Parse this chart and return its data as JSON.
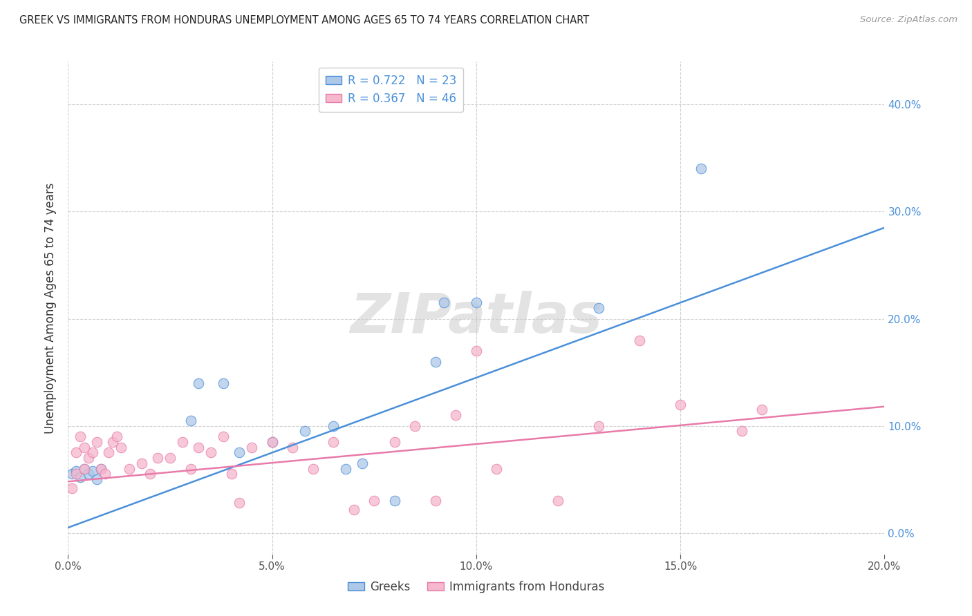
{
  "title": "GREEK VS IMMIGRANTS FROM HONDURAS UNEMPLOYMENT AMONG AGES 65 TO 74 YEARS CORRELATION CHART",
  "source": "Source: ZipAtlas.com",
  "ylabel": "Unemployment Among Ages 65 to 74 years",
  "xlim": [
    0,
    0.2
  ],
  "ylim": [
    -0.02,
    0.44
  ],
  "xticks": [
    0.0,
    0.05,
    0.1,
    0.15,
    0.2
  ],
  "yticks": [
    0.0,
    0.1,
    0.2,
    0.3,
    0.4
  ],
  "background_color": "#ffffff",
  "grid_color": "#d0d0d0",
  "blue_fill": "#aec8e8",
  "blue_edge": "#4a90d9",
  "blue_line": "#4a90d9",
  "pink_fill": "#f5b8cc",
  "pink_edge": "#e87aaa",
  "pink_line": "#e87aaa",
  "legend_text_color": "#4a90d9",
  "legend_R_blue": "R = 0.722",
  "legend_N_blue": "N = 23",
  "legend_R_pink": "R = 0.367",
  "legend_N_pink": "N = 46",
  "greeks_x": [
    0.001,
    0.002,
    0.003,
    0.004,
    0.005,
    0.006,
    0.007,
    0.008,
    0.03,
    0.032,
    0.038,
    0.042,
    0.05,
    0.058,
    0.065,
    0.068,
    0.072,
    0.08,
    0.09,
    0.092,
    0.1,
    0.13,
    0.155
  ],
  "greeks_y": [
    0.055,
    0.058,
    0.052,
    0.06,
    0.055,
    0.058,
    0.05,
    0.06,
    0.105,
    0.14,
    0.14,
    0.075,
    0.085,
    0.095,
    0.1,
    0.06,
    0.065,
    0.03,
    0.16,
    0.215,
    0.215,
    0.21,
    0.34
  ],
  "honduras_x": [
    0.001,
    0.002,
    0.002,
    0.003,
    0.004,
    0.004,
    0.005,
    0.006,
    0.007,
    0.008,
    0.009,
    0.01,
    0.011,
    0.012,
    0.013,
    0.015,
    0.018,
    0.02,
    0.022,
    0.025,
    0.028,
    0.03,
    0.032,
    0.035,
    0.038,
    0.04,
    0.042,
    0.045,
    0.05,
    0.055,
    0.06,
    0.065,
    0.07,
    0.075,
    0.08,
    0.085,
    0.09,
    0.095,
    0.1,
    0.105,
    0.12,
    0.13,
    0.14,
    0.15,
    0.165,
    0.17
  ],
  "honduras_y": [
    0.042,
    0.055,
    0.075,
    0.09,
    0.06,
    0.08,
    0.07,
    0.075,
    0.085,
    0.06,
    0.055,
    0.075,
    0.085,
    0.09,
    0.08,
    0.06,
    0.065,
    0.055,
    0.07,
    0.07,
    0.085,
    0.06,
    0.08,
    0.075,
    0.09,
    0.055,
    0.028,
    0.08,
    0.085,
    0.08,
    0.06,
    0.085,
    0.022,
    0.03,
    0.085,
    0.1,
    0.03,
    0.11,
    0.17,
    0.06,
    0.03,
    0.1,
    0.18,
    0.12,
    0.095,
    0.115
  ],
  "blue_trend_x": [
    0.0,
    0.2
  ],
  "blue_trend_y": [
    0.005,
    0.285
  ],
  "pink_trend_x": [
    0.0,
    0.2
  ],
  "pink_trend_y": [
    0.048,
    0.118
  ]
}
